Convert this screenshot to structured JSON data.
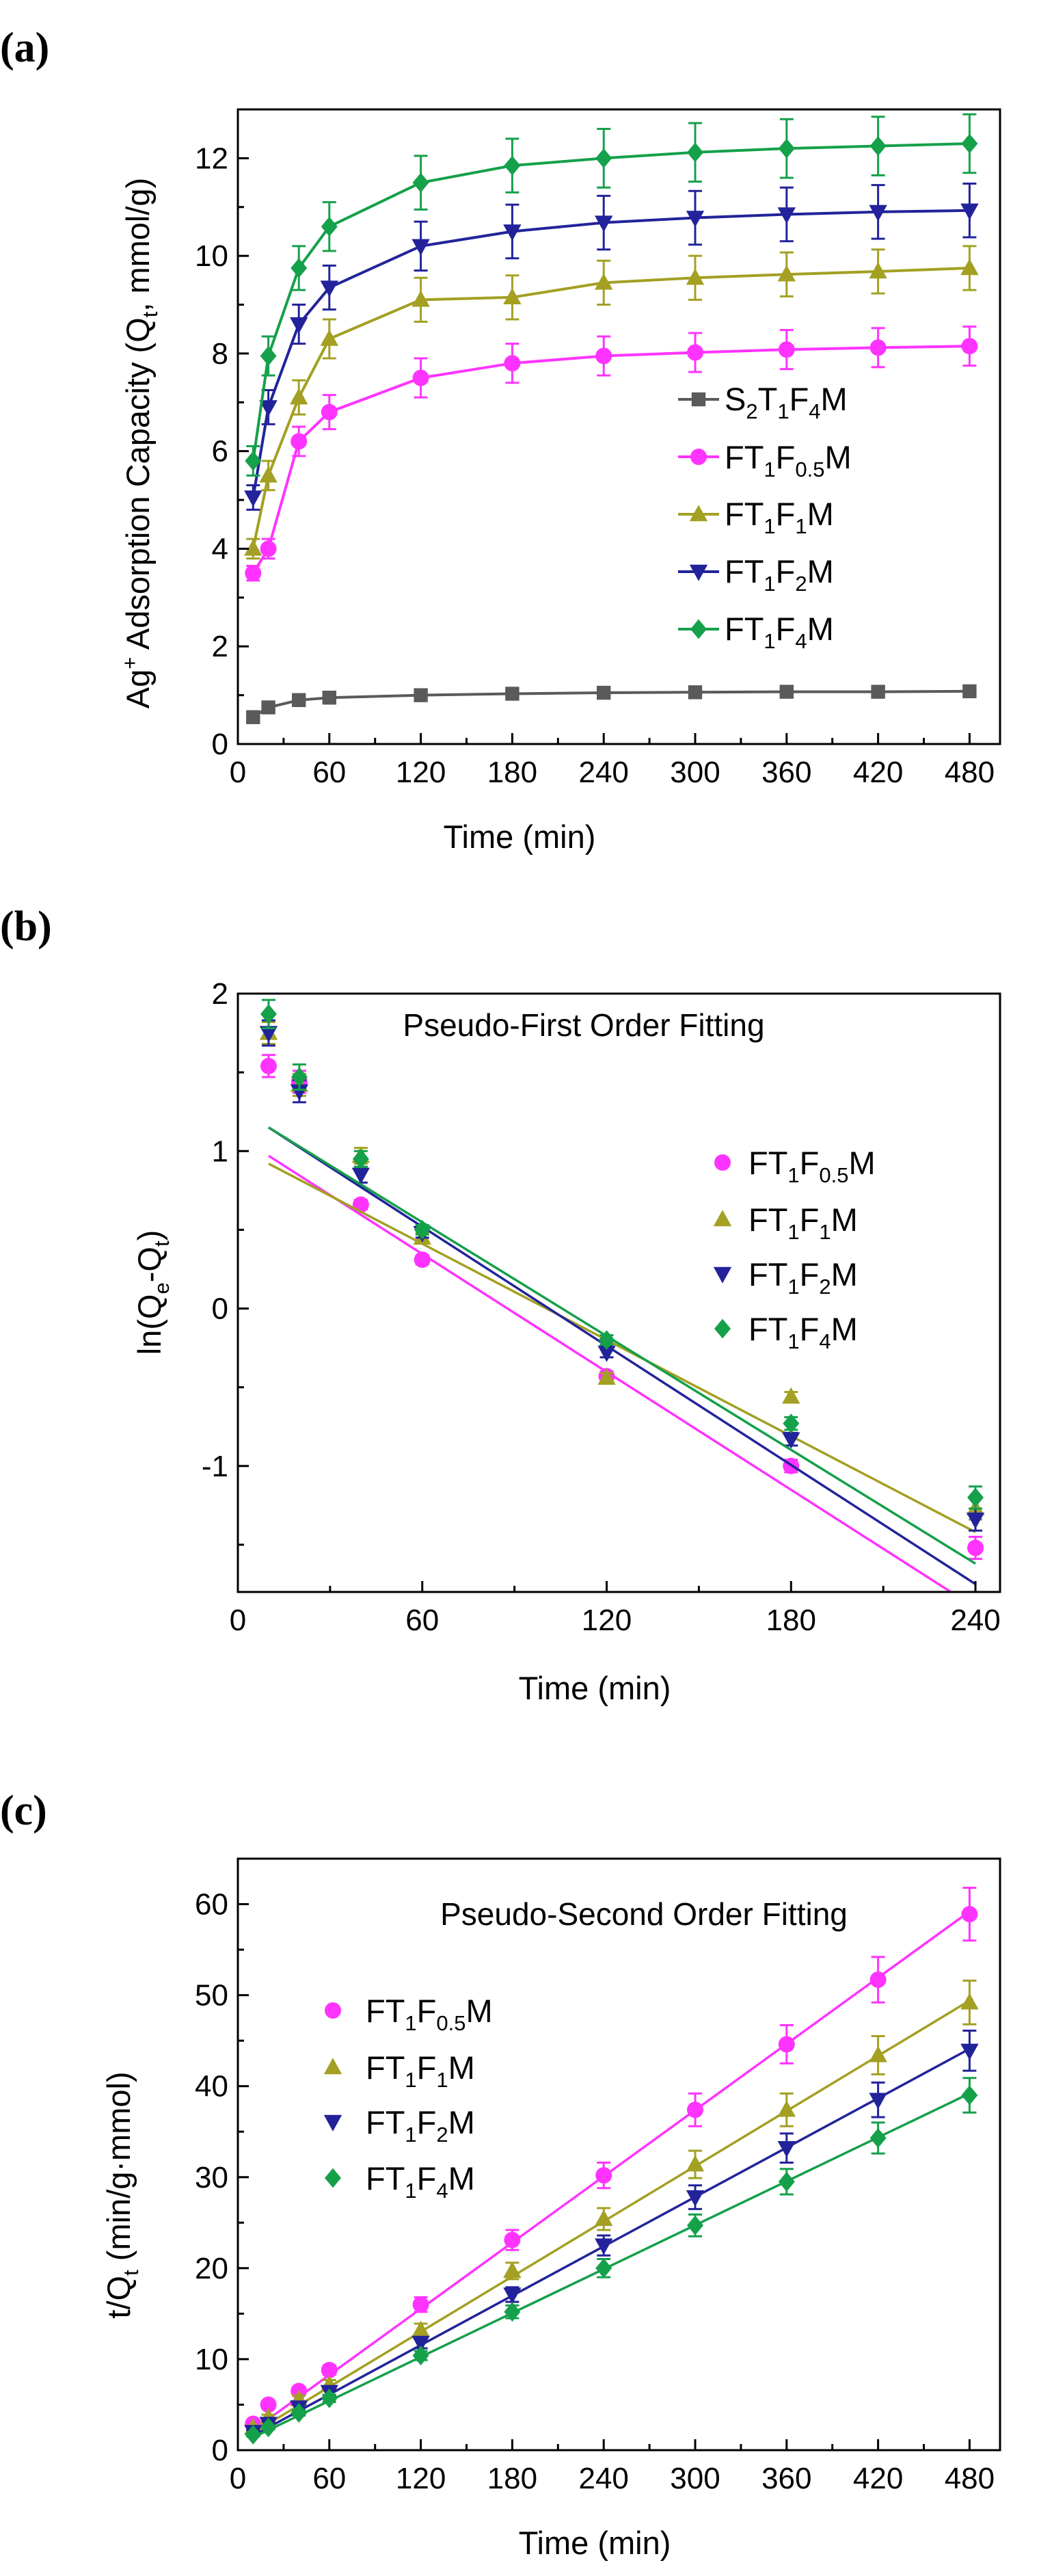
{
  "colors": {
    "S2T1F4M": "#5a5a5a",
    "FT1F0.5M": "#ff33ff",
    "FT1F1M": "#a3a023",
    "FT1F2M": "#22239a",
    "FT1F4M": "#15a04a"
  },
  "chart_data": [
    {
      "panel": "(a)",
      "type": "line",
      "title": "",
      "xlabel": "Time (min)",
      "ylabel": "Ag+ Adsorption Capacity (Qt, mmol/g)",
      "xlim": [
        0,
        500
      ],
      "ylim": [
        0,
        13
      ],
      "xticks": [
        0,
        60,
        120,
        180,
        240,
        300,
        360,
        420,
        480
      ],
      "yticks": [
        0,
        2,
        4,
        6,
        8,
        10,
        12
      ],
      "x": [
        10,
        20,
        40,
        60,
        120,
        180,
        240,
        300,
        360,
        420,
        480
      ],
      "legend_position": "center-right",
      "series": [
        {
          "key": "S2T1F4M",
          "name": "S2T1F4M",
          "marker": "square",
          "values": [
            0.55,
            0.75,
            0.9,
            0.95,
            1.0,
            1.03,
            1.05,
            1.06,
            1.07,
            1.07,
            1.08
          ],
          "errors": [
            0.05,
            0.05,
            0.05,
            0.05,
            0.05,
            0.05,
            0.05,
            0.05,
            0.05,
            0.05,
            0.05
          ]
        },
        {
          "key": "FT1F0.5M",
          "name": "FT1F0.5M",
          "marker": "circle",
          "values": [
            3.5,
            4.0,
            6.2,
            6.8,
            7.5,
            7.8,
            7.95,
            8.02,
            8.08,
            8.12,
            8.15
          ],
          "errors": [
            0.15,
            0.2,
            0.3,
            0.35,
            0.4,
            0.4,
            0.4,
            0.4,
            0.4,
            0.4,
            0.4
          ]
        },
        {
          "key": "FT1F1M",
          "name": "FT1F1M",
          "marker": "triangle-up",
          "values": [
            4.0,
            5.5,
            7.1,
            8.3,
            9.1,
            9.15,
            9.45,
            9.55,
            9.62,
            9.68,
            9.75
          ],
          "errors": [
            0.2,
            0.3,
            0.35,
            0.4,
            0.45,
            0.45,
            0.45,
            0.45,
            0.45,
            0.45,
            0.45
          ]
        },
        {
          "key": "FT1F2M",
          "name": "FT1F2M",
          "marker": "triangle-down",
          "values": [
            5.05,
            6.9,
            8.6,
            9.35,
            10.2,
            10.5,
            10.68,
            10.78,
            10.85,
            10.9,
            10.93
          ],
          "errors": [
            0.25,
            0.35,
            0.4,
            0.45,
            0.5,
            0.55,
            0.55,
            0.55,
            0.55,
            0.55,
            0.55
          ]
        },
        {
          "key": "FT1F4M",
          "name": "FT1F4M",
          "marker": "diamond",
          "values": [
            5.8,
            7.95,
            9.75,
            10.6,
            11.5,
            11.85,
            12.0,
            12.12,
            12.2,
            12.25,
            12.3
          ],
          "errors": [
            0.3,
            0.4,
            0.45,
            0.5,
            0.55,
            0.55,
            0.6,
            0.6,
            0.6,
            0.6,
            0.6
          ]
        }
      ]
    },
    {
      "panel": "(b)",
      "type": "scatter",
      "title": "Pseudo-First Order Fitting",
      "xlabel": "Time (min)",
      "ylabel": "ln(Qe-Qt)",
      "xlim": [
        0,
        248
      ],
      "ylim": [
        -1.8,
        2
      ],
      "xticks": [
        0,
        60,
        120,
        180,
        240
      ],
      "yticks": [
        -1,
        0,
        1,
        2
      ],
      "x": [
        10,
        20,
        40,
        60,
        120,
        180,
        240
      ],
      "legend_position": "center-right",
      "series": [
        {
          "key": "FT1F0.5M",
          "name": "FT1F0.5M",
          "marker": "circle",
          "values": [
            1.54,
            1.44,
            0.66,
            0.31,
            -0.43,
            -1.0,
            -1.52
          ],
          "errors": [
            0.07,
            0.07,
            0.03,
            0.03,
            0.03,
            0.04,
            0.07
          ],
          "fit": {
            "x": [
              10,
              232
            ],
            "y": [
              0.97,
              -1.8
            ]
          }
        },
        {
          "key": "FT1F1M",
          "name": "FT1F1M",
          "marker": "triangle-up",
          "values": [
            1.75,
            1.42,
            0.97,
            0.45,
            -0.44,
            -0.56,
            -1.27
          ],
          "errors": [
            0.07,
            0.07,
            0.05,
            0.03,
            0.03,
            0.03,
            0.07
          ],
          "fit": {
            "x": [
              10,
              240
            ],
            "y": [
              0.92,
              -1.42
            ]
          }
        },
        {
          "key": "FT1F2M",
          "name": "FT1F2M",
          "marker": "triangle-down",
          "values": [
            1.75,
            1.38,
            0.85,
            0.48,
            -0.28,
            -0.83,
            -1.34
          ],
          "errors": [
            0.08,
            0.07,
            0.05,
            0.03,
            0.03,
            0.04,
            0.07
          ],
          "fit": {
            "x": [
              10,
              240
            ],
            "y": [
              1.15,
              -1.75
            ]
          }
        },
        {
          "key": "FT1F4M",
          "name": "FT1F4M",
          "marker": "diamond",
          "values": [
            1.87,
            1.47,
            0.95,
            0.5,
            -0.2,
            -0.73,
            -1.2
          ],
          "errors": [
            0.09,
            0.08,
            0.05,
            0.03,
            0.03,
            0.04,
            0.07
          ],
          "fit": {
            "x": [
              10,
              240
            ],
            "y": [
              1.15,
              -1.62
            ]
          }
        }
      ]
    },
    {
      "panel": "(c)",
      "type": "scatter",
      "title": "Pseudo-Second Order Fitting",
      "xlabel": "Time (min)",
      "ylabel": "t/Qt (min/g·mmol)",
      "xlim": [
        0,
        500
      ],
      "ylim": [
        0,
        65
      ],
      "xticks": [
        0,
        60,
        120,
        180,
        240,
        300,
        360,
        420,
        480
      ],
      "yticks": [
        0,
        10,
        20,
        30,
        40,
        50,
        60
      ],
      "x": [
        10,
        20,
        40,
        60,
        120,
        180,
        240,
        300,
        360,
        420,
        480
      ],
      "legend_position": "top-left",
      "series": [
        {
          "key": "FT1F0.5M",
          "name": "FT1F0.5M",
          "marker": "circle",
          "values": [
            2.9,
            5.0,
            6.5,
            8.8,
            16.0,
            23.1,
            30.2,
            37.4,
            44.6,
            51.7,
            58.9
          ],
          "errors": [
            0.3,
            0.4,
            0.4,
            0.5,
            0.8,
            1.1,
            1.4,
            1.8,
            2.1,
            2.5,
            2.9
          ],
          "fit": {
            "x": [
              10,
              480
            ],
            "y": [
              2.2,
              59.2
            ]
          }
        },
        {
          "key": "FT1F1M",
          "name": "FT1F1M",
          "marker": "triangle-up",
          "values": [
            2.5,
            3.6,
            5.6,
            7.2,
            13.2,
            19.7,
            25.4,
            31.4,
            37.4,
            43.4,
            49.2
          ],
          "errors": [
            0.2,
            0.3,
            0.4,
            0.5,
            0.7,
            0.9,
            1.2,
            1.5,
            1.8,
            2.1,
            2.4
          ],
          "fit": {
            "x": [
              10,
              480
            ],
            "y": [
              1.9,
              49.4
            ]
          }
        },
        {
          "key": "FT1F2M",
          "name": "FT1F2M",
          "marker": "triangle-down",
          "values": [
            2.0,
            2.9,
            4.7,
            6.4,
            11.8,
            17.1,
            22.5,
            27.8,
            33.2,
            38.5,
            43.9
          ],
          "errors": [
            0.2,
            0.3,
            0.3,
            0.4,
            0.6,
            0.8,
            1.1,
            1.3,
            1.6,
            1.9,
            2.2
          ],
          "fit": {
            "x": [
              10,
              480
            ],
            "y": [
              1.6,
              44.1
            ]
          }
        },
        {
          "key": "FT1F4M",
          "name": "FT1F4M",
          "marker": "diamond",
          "values": [
            1.7,
            2.5,
            4.1,
            5.7,
            10.4,
            15.2,
            20.0,
            24.7,
            29.5,
            34.3,
            39.0
          ],
          "errors": [
            0.2,
            0.2,
            0.3,
            0.4,
            0.5,
            0.7,
            1.0,
            1.2,
            1.4,
            1.7,
            1.9
          ],
          "fit": {
            "x": [
              10,
              480
            ],
            "y": [
              1.4,
              39.2
            ]
          }
        }
      ]
    }
  ]
}
